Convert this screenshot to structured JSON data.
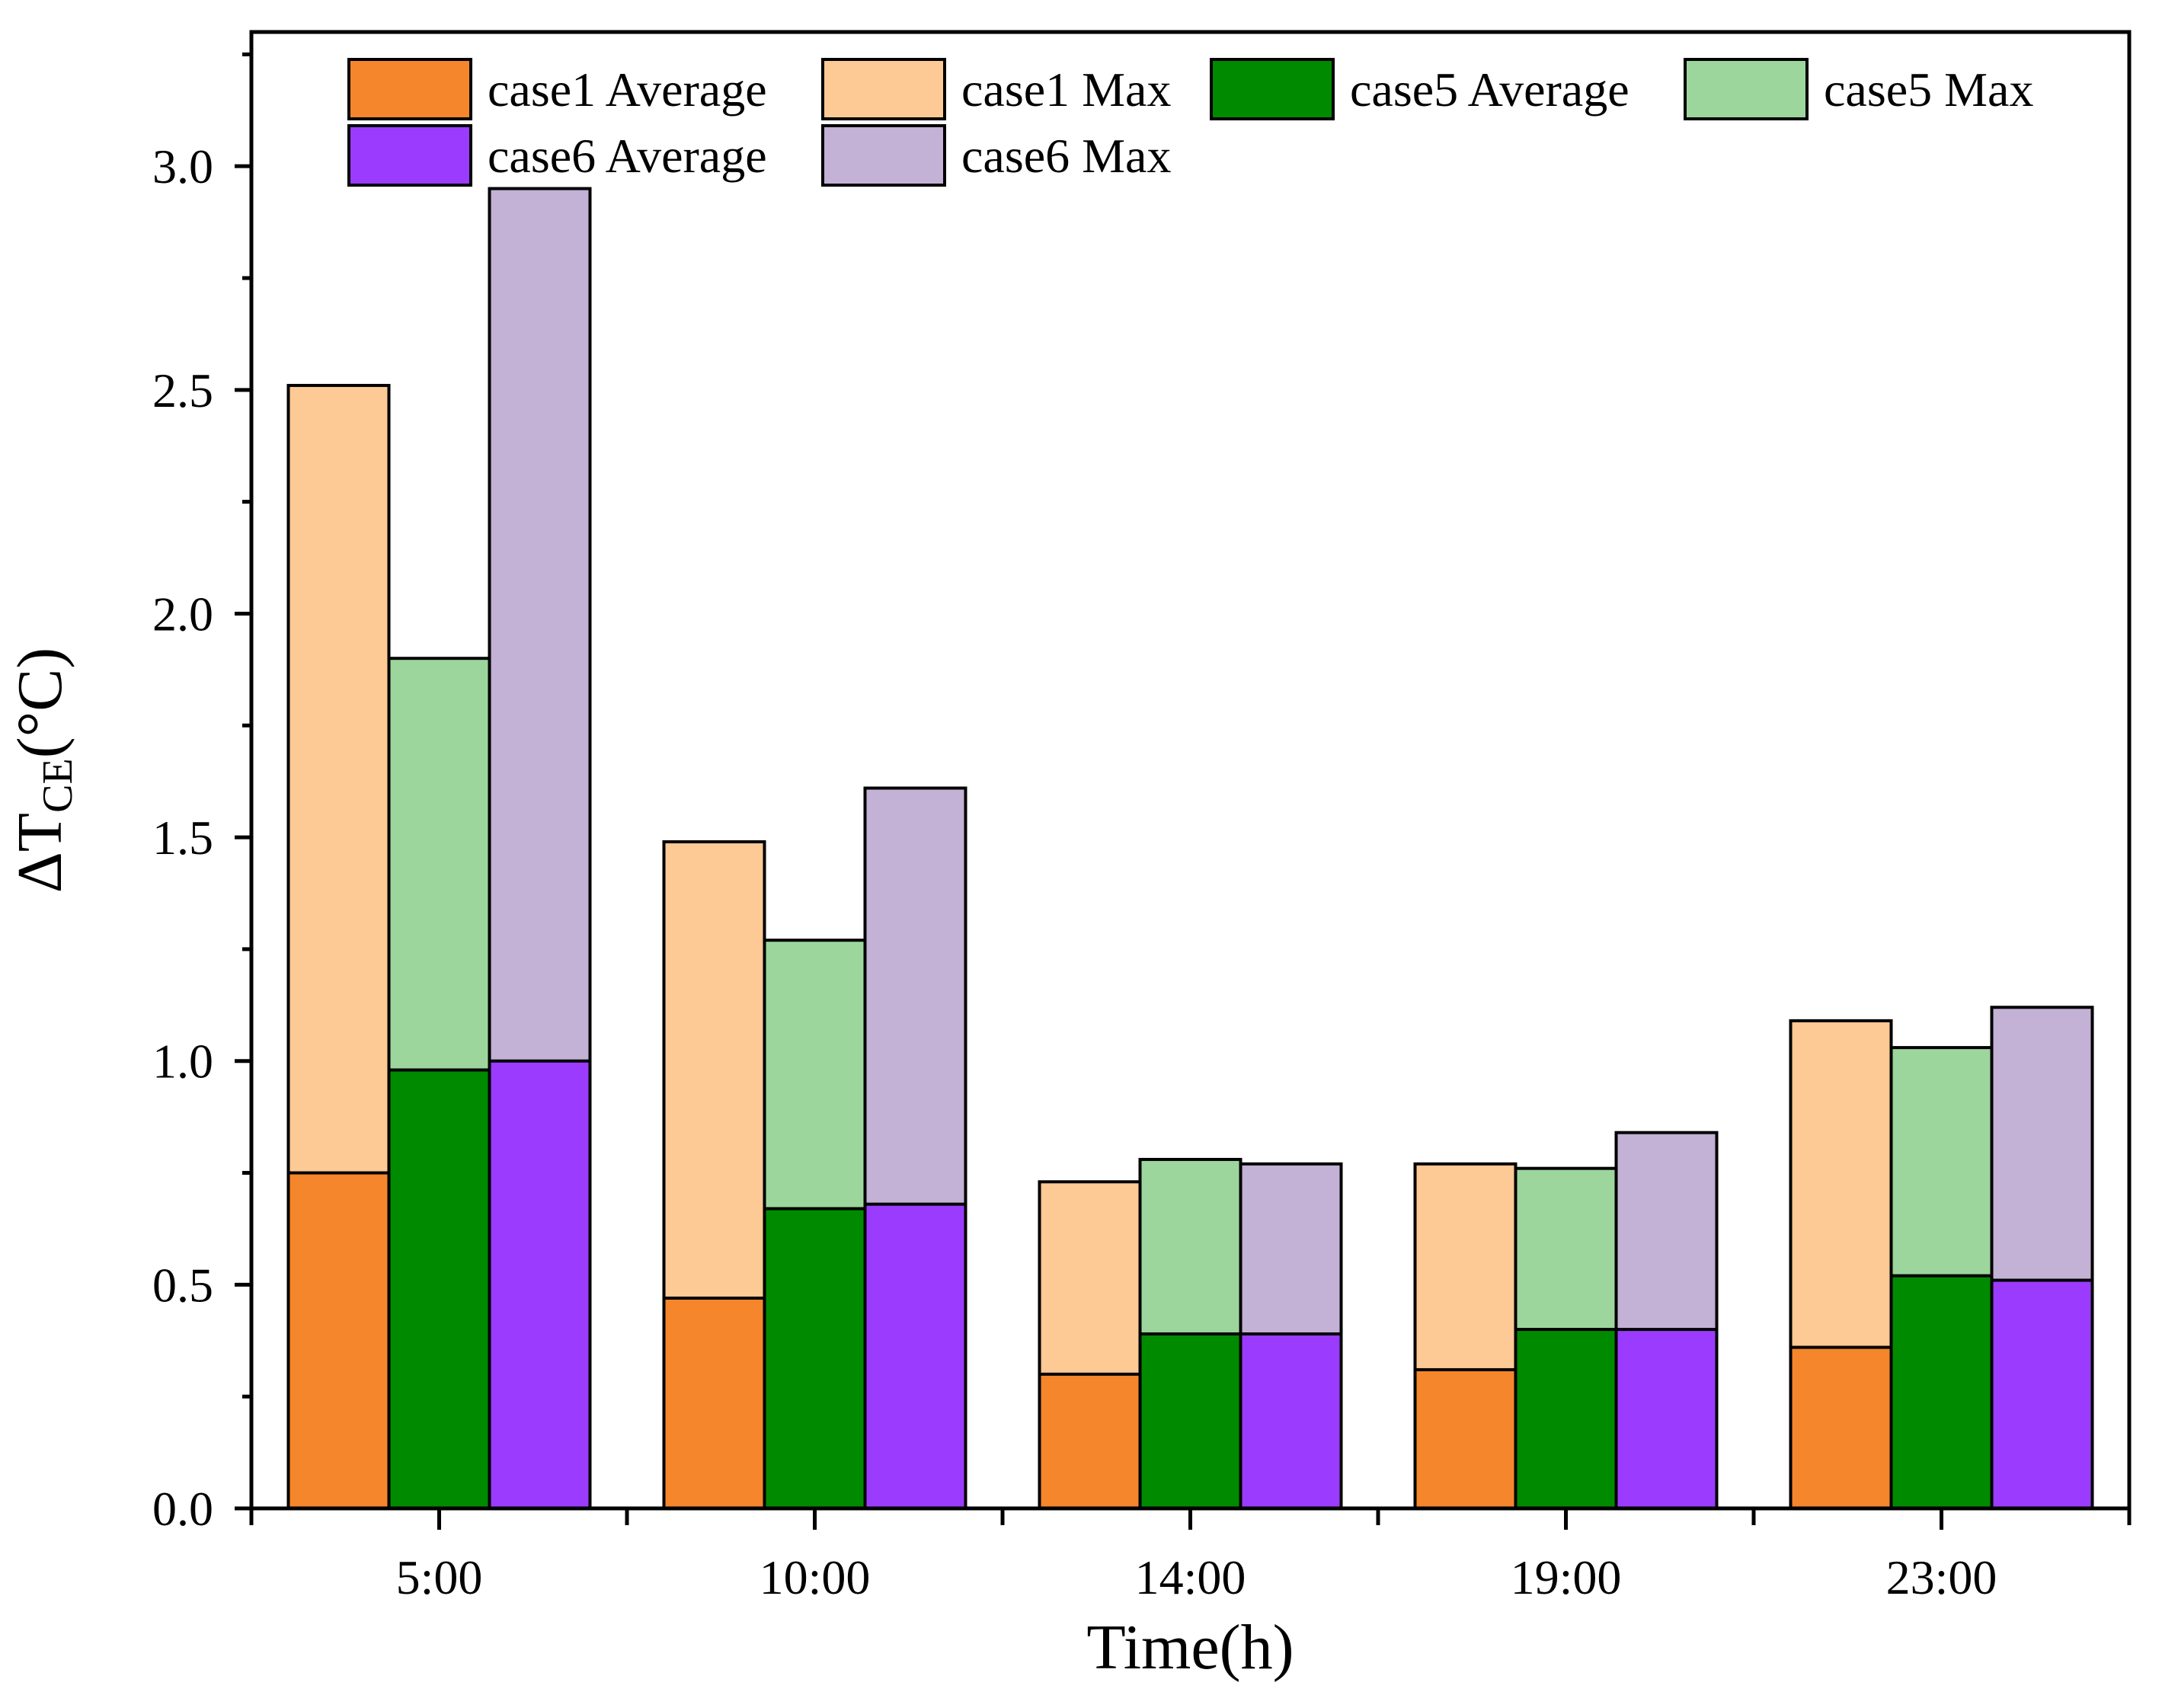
{
  "chart_data": {
    "type": "bar",
    "categories": [
      "5:00",
      "10:00",
      "14:00",
      "19:00",
      "23:00"
    ],
    "xlabel": "Time(h)",
    "ylabel": {
      "prefix": "ΔT",
      "subscript": "CE",
      "suffix": "(°C)"
    },
    "ylim": [
      0,
      3.3
    ],
    "yticks": [
      "0.0",
      "0.5",
      "1.0",
      "1.5",
      "2.0",
      "2.5",
      "3.0"
    ],
    "ytick_values": [
      0,
      0.5,
      1.0,
      1.5,
      2.0,
      2.5,
      3.0
    ],
    "grid": false,
    "legend_position": "top",
    "series": [
      {
        "name": "case1 Average",
        "color": "#F5862B",
        "values": [
          0.75,
          0.47,
          0.3,
          0.31,
          0.36
        ]
      },
      {
        "name": "case1 Max",
        "color": "#FDC994",
        "values": [
          2.51,
          1.49,
          0.73,
          0.77,
          1.09
        ]
      },
      {
        "name": "case5 Average",
        "color": "#008A00",
        "values": [
          0.98,
          0.67,
          0.39,
          0.4,
          0.52
        ]
      },
      {
        "name": "case5 Max",
        "color": "#9CD69C",
        "values": [
          1.9,
          1.27,
          0.78,
          0.76,
          1.03
        ]
      },
      {
        "name": "case6 Average",
        "color": "#9B3BFD",
        "values": [
          1.0,
          0.68,
          0.39,
          0.4,
          0.51
        ]
      },
      {
        "name": "case6 Max",
        "color": "#C3B1D6",
        "values": [
          2.95,
          1.61,
          0.77,
          0.84,
          1.12
        ]
      }
    ],
    "groups": [
      {
        "case": "case1",
        "average_series": 0,
        "max_series": 1
      },
      {
        "case": "case5",
        "average_series": 2,
        "max_series": 3
      },
      {
        "case": "case6",
        "average_series": 4,
        "max_series": 5
      }
    ]
  }
}
